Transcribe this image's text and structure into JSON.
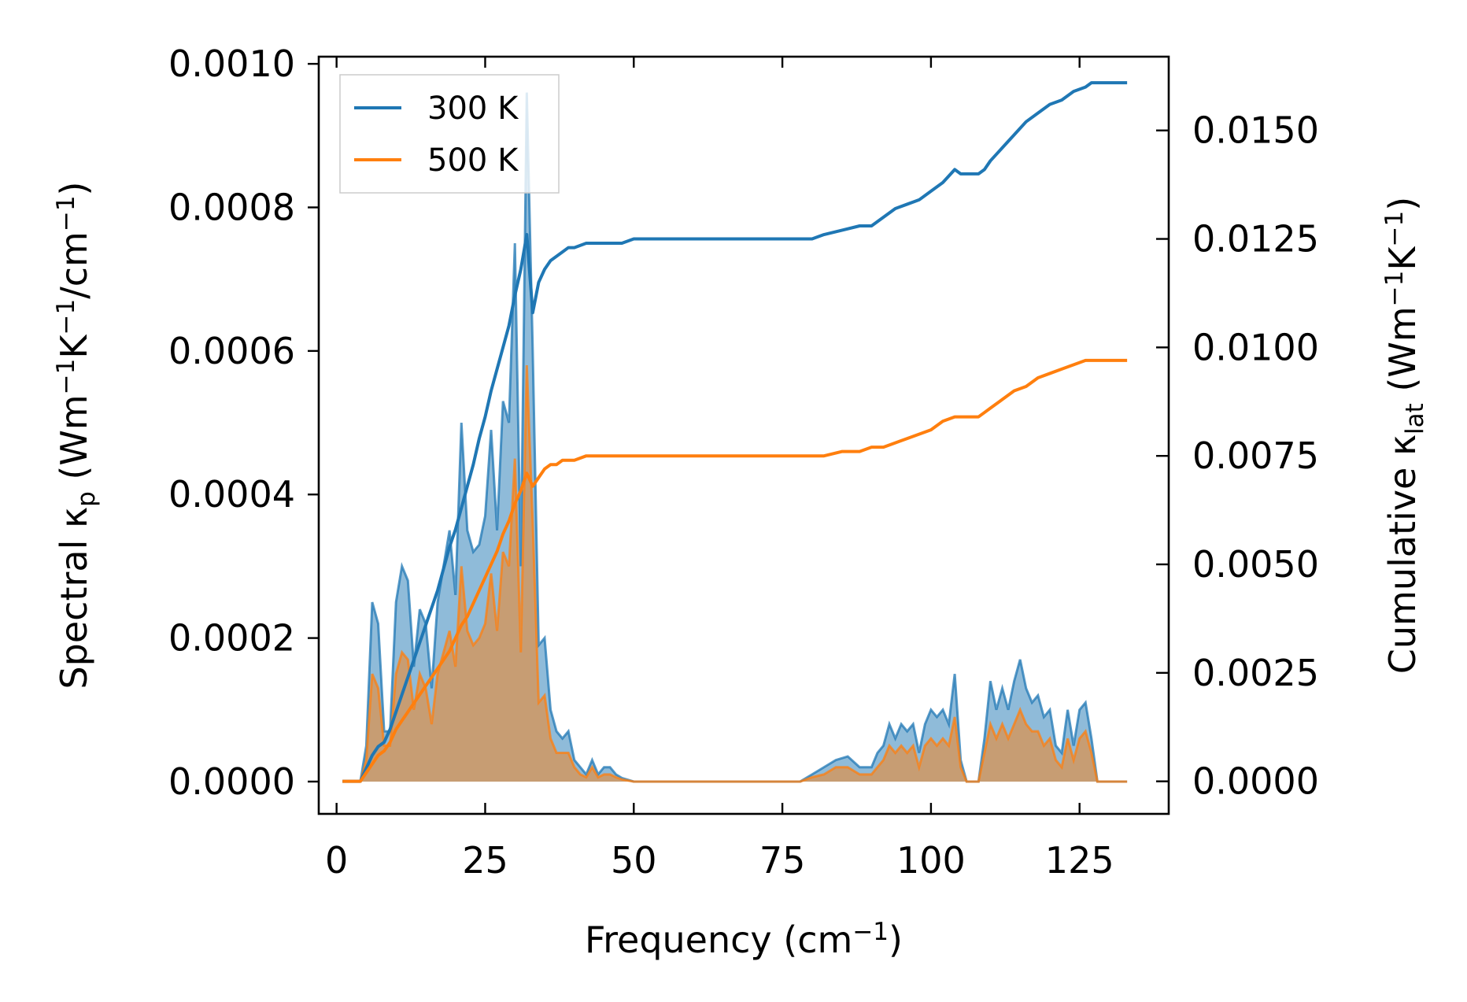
{
  "chart_data": {
    "type": "area",
    "title": "",
    "xlabel": "Frequency (cm$^{-1}$)",
    "ylabel_left": "Spectral κp (Wm⁻¹K⁻¹/cm⁻¹)",
    "ylabel_right": "Cumulative κlat (Wm⁻¹K⁻¹)",
    "xlim": [
      -3,
      140
    ],
    "ylim_left": [
      -4.5e-05,
      0.00101
    ],
    "ylim_right": [
      -0.00075,
      0.0167
    ],
    "x_ticks": [
      0,
      25,
      50,
      75,
      100,
      125
    ],
    "x_tick_labels": [
      "0",
      "25",
      "50",
      "75",
      "100",
      "125"
    ],
    "y_left_ticks": [
      0.0,
      0.0002,
      0.0004,
      0.0006,
      0.0008,
      0.001
    ],
    "y_left_tick_labels": [
      "0.0000",
      "0.0002",
      "0.0004",
      "0.0006",
      "0.0008",
      "0.0010"
    ],
    "y_right_ticks": [
      0.0,
      0.0025,
      0.005,
      0.0075,
      0.01,
      0.0125,
      0.015
    ],
    "y_right_tick_labels": [
      "0.0000",
      "0.0025",
      "0.0050",
      "0.0075",
      "0.0100",
      "0.0125",
      "0.0150"
    ],
    "legend": {
      "position": "upper-left",
      "entries": [
        "300 K",
        "500 K"
      ]
    },
    "colors": {
      "300K": "#1f77b4",
      "500K": "#ff7f0e",
      "fill_300K": "#1f77b4",
      "fill_500K": "#ff7f0e"
    },
    "spectral_series": [
      {
        "name": "300 K",
        "x": [
          1,
          4,
          5,
          6,
          7,
          8,
          9,
          10,
          11,
          12,
          13,
          14,
          15,
          16,
          17,
          18,
          19,
          20,
          21,
          22,
          23,
          24,
          25,
          26,
          27,
          28,
          29,
          30,
          31,
          32,
          33,
          34,
          35,
          36,
          37,
          38,
          39,
          40,
          41,
          42,
          43,
          44,
          45,
          46,
          47,
          48,
          50,
          55,
          60,
          65,
          70,
          75,
          78,
          80,
          82,
          84,
          86,
          88,
          90,
          91,
          92,
          93,
          94,
          95,
          96,
          97,
          98,
          99,
          100,
          101,
          102,
          103,
          104,
          105,
          106,
          107,
          108,
          109,
          110,
          111,
          112,
          113,
          114,
          115,
          116,
          117,
          118,
          119,
          120,
          121,
          122,
          123,
          124,
          125,
          126,
          127,
          128,
          129,
          130,
          133
        ],
        "y": [
          0.0,
          0.0,
          5e-05,
          0.00025,
          0.00022,
          7e-05,
          7e-05,
          0.00025,
          0.0003,
          0.00028,
          0.00016,
          0.00024,
          0.00022,
          0.00013,
          0.00025,
          0.0003,
          0.00035,
          0.00026,
          0.0005,
          0.00035,
          0.00032,
          0.00033,
          0.00037,
          0.00049,
          0.00035,
          0.00053,
          0.0005,
          0.00075,
          0.0003,
          0.00096,
          0.0006,
          0.00019,
          0.0002,
          0.0001,
          7e-05,
          6e-05,
          7e-05,
          3e-05,
          2e-05,
          1e-05,
          3e-05,
          1e-05,
          2e-05,
          2e-05,
          1e-05,
          5e-06,
          0.0,
          0.0,
          0.0,
          0.0,
          0.0,
          0.0,
          0.0,
          1e-05,
          2e-05,
          3e-05,
          3.5e-05,
          2e-05,
          2e-05,
          4e-05,
          5e-05,
          8e-05,
          6e-05,
          8e-05,
          7e-05,
          8e-05,
          4e-05,
          8e-05,
          0.0001,
          9e-05,
          0.0001,
          8e-05,
          0.00015,
          3e-05,
          0.0,
          0.0,
          0.0,
          6e-05,
          0.00014,
          0.0001,
          0.00013,
          0.0001,
          0.00014,
          0.00017,
          0.00013,
          0.00011,
          0.00012,
          9e-05,
          0.0001,
          5e-05,
          4e-05,
          0.0001,
          5e-05,
          0.0001,
          0.00011,
          6e-05,
          0.0,
          0.0,
          0.0,
          0.0
        ]
      },
      {
        "name": "500 K",
        "x": [
          1,
          4,
          5,
          6,
          7,
          8,
          9,
          10,
          11,
          12,
          13,
          14,
          15,
          16,
          17,
          18,
          19,
          20,
          21,
          22,
          23,
          24,
          25,
          26,
          27,
          28,
          29,
          30,
          31,
          32,
          33,
          34,
          35,
          36,
          37,
          38,
          39,
          40,
          41,
          42,
          43,
          44,
          45,
          46,
          47,
          48,
          50,
          55,
          60,
          65,
          70,
          75,
          78,
          80,
          82,
          84,
          86,
          88,
          90,
          91,
          92,
          93,
          94,
          95,
          96,
          97,
          98,
          99,
          100,
          101,
          102,
          103,
          104,
          105,
          106,
          107,
          108,
          109,
          110,
          111,
          112,
          113,
          114,
          115,
          116,
          117,
          118,
          119,
          120,
          121,
          122,
          123,
          124,
          125,
          126,
          127,
          128,
          129,
          130,
          133
        ],
        "y": [
          0.0,
          0.0,
          3e-05,
          0.00015,
          0.00013,
          5e-05,
          5e-05,
          0.00015,
          0.00018,
          0.00017,
          0.0001,
          0.00015,
          0.00013,
          8e-05,
          0.00015,
          0.00018,
          0.00021,
          0.00016,
          0.0003,
          0.00021,
          0.00019,
          0.0002,
          0.00022,
          0.00029,
          0.00021,
          0.00032,
          0.0003,
          0.00045,
          0.00018,
          0.00058,
          0.00036,
          0.00011,
          0.00012,
          6e-05,
          4e-05,
          4e-05,
          4e-05,
          2e-05,
          1e-05,
          6e-06,
          2e-05,
          6e-06,
          1e-05,
          1e-05,
          6e-06,
          3e-06,
          0.0,
          0.0,
          0.0,
          0.0,
          0.0,
          0.0,
          0.0,
          6e-06,
          1e-05,
          2e-05,
          2e-05,
          1e-05,
          1e-05,
          2e-05,
          3e-05,
          5e-05,
          4e-05,
          5e-05,
          4e-05,
          5e-05,
          2e-05,
          5e-05,
          6e-05,
          5e-05,
          6e-05,
          5e-05,
          9e-05,
          2e-05,
          0.0,
          0.0,
          0.0,
          4e-05,
          8e-05,
          6e-05,
          8e-05,
          6e-05,
          8e-05,
          0.0001,
          8e-05,
          7e-05,
          7e-05,
          5e-05,
          6e-05,
          3e-05,
          2e-05,
          6e-05,
          3e-05,
          6e-05,
          7e-05,
          4e-05,
          0.0,
          0.0,
          0.0,
          0.0
        ]
      }
    ],
    "cumulative_series": [
      {
        "name": "300 K",
        "x": [
          1,
          4,
          5,
          6,
          7,
          8,
          9,
          10,
          11,
          12,
          13,
          14,
          15,
          16,
          17,
          18,
          19,
          20,
          21,
          22,
          23,
          24,
          25,
          26,
          27,
          28,
          29,
          30,
          31,
          32,
          33,
          34,
          35,
          36,
          37,
          38,
          39,
          40,
          42,
          44,
          46,
          48,
          50,
          55,
          60,
          65,
          70,
          75,
          78,
          80,
          82,
          85,
          88,
          90,
          92,
          94,
          96,
          98,
          100,
          102,
          104,
          105,
          106,
          108,
          109,
          110,
          112,
          114,
          116,
          118,
          120,
          122,
          124,
          126,
          127,
          128,
          130,
          133
        ],
        "y": [
          0.0,
          0.0,
          0.0003,
          0.0006,
          0.0008,
          0.0009,
          0.0012,
          0.0016,
          0.002,
          0.0024,
          0.0028,
          0.0032,
          0.0036,
          0.004,
          0.0044,
          0.0049,
          0.0054,
          0.0058,
          0.0063,
          0.0068,
          0.0073,
          0.0079,
          0.0084,
          0.009,
          0.0095,
          0.01,
          0.0105,
          0.0112,
          0.0118,
          0.0126,
          0.0108,
          0.0115,
          0.0118,
          0.012,
          0.0121,
          0.0122,
          0.0123,
          0.0123,
          0.0124,
          0.0124,
          0.0124,
          0.0124,
          0.0125,
          0.0125,
          0.0125,
          0.0125,
          0.0125,
          0.0125,
          0.0125,
          0.0125,
          0.0126,
          0.0127,
          0.0128,
          0.0128,
          0.013,
          0.0132,
          0.0133,
          0.0134,
          0.0136,
          0.0138,
          0.0141,
          0.014,
          0.014,
          0.014,
          0.0141,
          0.0143,
          0.0146,
          0.0149,
          0.0152,
          0.0154,
          0.0156,
          0.0157,
          0.0159,
          0.016,
          0.0161,
          0.0161,
          0.0161,
          0.0161
        ]
      },
      {
        "name": "500 K",
        "x": [
          1,
          4,
          5,
          6,
          7,
          8,
          9,
          10,
          11,
          12,
          13,
          14,
          15,
          16,
          17,
          18,
          19,
          20,
          21,
          22,
          23,
          24,
          25,
          26,
          27,
          28,
          29,
          30,
          31,
          32,
          33,
          34,
          35,
          36,
          37,
          38,
          39,
          40,
          42,
          44,
          46,
          48,
          50,
          55,
          60,
          65,
          70,
          75,
          78,
          80,
          82,
          85,
          88,
          90,
          92,
          94,
          96,
          98,
          100,
          102,
          104,
          105,
          106,
          108,
          109,
          110,
          112,
          114,
          116,
          118,
          120,
          122,
          124,
          126,
          127,
          128,
          130,
          133
        ],
        "y": [
          0.0,
          0.0,
          0.0002,
          0.0004,
          0.0006,
          0.0007,
          0.0009,
          0.0012,
          0.0014,
          0.0016,
          0.0018,
          0.002,
          0.0022,
          0.0024,
          0.0026,
          0.0028,
          0.003,
          0.0033,
          0.0036,
          0.0038,
          0.0041,
          0.0044,
          0.0047,
          0.005,
          0.0053,
          0.0057,
          0.006,
          0.0064,
          0.0067,
          0.0071,
          0.0068,
          0.007,
          0.0072,
          0.0073,
          0.0073,
          0.0074,
          0.0074,
          0.0074,
          0.0075,
          0.0075,
          0.0075,
          0.0075,
          0.0075,
          0.0075,
          0.0075,
          0.0075,
          0.0075,
          0.0075,
          0.0075,
          0.0075,
          0.0075,
          0.0076,
          0.0076,
          0.0077,
          0.0077,
          0.0078,
          0.0079,
          0.008,
          0.0081,
          0.0083,
          0.0084,
          0.0084,
          0.0084,
          0.0084,
          0.0085,
          0.0086,
          0.0088,
          0.009,
          0.0091,
          0.0093,
          0.0094,
          0.0095,
          0.0096,
          0.0097,
          0.0097,
          0.0097,
          0.0097,
          0.0097
        ]
      }
    ]
  }
}
